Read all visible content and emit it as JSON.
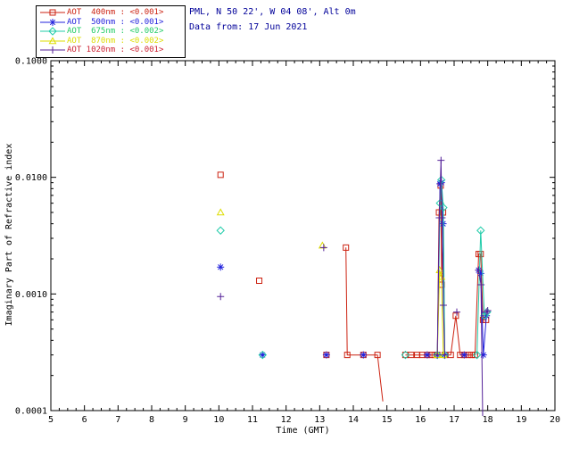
{
  "header": {
    "line1": "PML, N 50 22', W 04 08', Alt 0m",
    "line2": "Data from: 17 Jun 2021"
  },
  "chart_data": {
    "type": "line",
    "xlabel": "Time (GMT)",
    "ylabel": "Imaginary Part of Refractive index",
    "xlim": [
      5,
      20
    ],
    "ylim": [
      0.0001,
      0.1
    ],
    "y_scale": "log",
    "grid": false,
    "legend_position": "top-left",
    "x_ticks": [
      5,
      6,
      7,
      8,
      9,
      10,
      11,
      12,
      13,
      14,
      15,
      16,
      17,
      18,
      19,
      20
    ],
    "y_ticks": [
      {
        "value": 0.0001,
        "label": "0.0001"
      },
      {
        "value": 0.001,
        "label": "0.0010"
      },
      {
        "value": 0.01,
        "label": "0.0100"
      },
      {
        "value": 0.1,
        "label": "0.1000"
      }
    ],
    "series": [
      {
        "name": "AOT 400nm",
        "legend_label": "AOT  400nm : <0.001>",
        "mean_value": "<0.001>",
        "color": "#cc2211",
        "legend_text_color": "#cc2211",
        "marker": "square",
        "segments": [
          [
            [
              10.05,
              0.0105
            ]
          ],
          [
            [
              11.2,
              0.0013
            ]
          ],
          [
            [
              13.2,
              0.0003
            ]
          ],
          [
            [
              13.78,
              0.0025
            ],
            [
              13.82,
              0.0003
            ],
            [
              14.3,
              0.0003
            ],
            [
              14.72,
              0.0003
            ],
            [
              14.88,
              0.00012
            ]
          ],
          [
            [
              15.55,
              0.0003
            ],
            [
              15.72,
              0.0003
            ],
            [
              15.9,
              0.0003
            ],
            [
              16.05,
              0.0003
            ],
            [
              16.2,
              0.0003
            ],
            [
              16.32,
              0.0003
            ],
            [
              16.42,
              0.0003
            ],
            [
              16.5,
              0.0003
            ],
            [
              16.55,
              0.005
            ],
            [
              16.6,
              0.0085
            ],
            [
              16.63,
              0.0012
            ],
            [
              16.67,
              0.005
            ],
            [
              16.72,
              0.0003
            ],
            [
              16.9,
              0.0003
            ],
            [
              17.05,
              0.00065
            ],
            [
              17.18,
              0.0003
            ],
            [
              17.3,
              0.0003
            ],
            [
              17.42,
              0.0003
            ],
            [
              17.52,
              0.0003
            ],
            [
              17.62,
              0.0003
            ],
            [
              17.73,
              0.0022
            ],
            [
              17.79,
              0.0022
            ],
            [
              17.86,
              0.0006
            ],
            [
              17.95,
              0.0006
            ]
          ]
        ]
      },
      {
        "name": "AOT 500nm",
        "legend_label": "AOT  500nm : <0.001>",
        "mean_value": "<0.001>",
        "color": "#2222dd",
        "legend_text_color": "#2222dd",
        "marker": "asterisk",
        "segments": [
          [
            [
              10.05,
              0.0017
            ]
          ],
          [
            [
              11.3,
              0.0003
            ]
          ],
          [
            [
              13.2,
              0.0003
            ]
          ],
          [
            [
              14.3,
              0.0003
            ]
          ],
          [
            [
              16.2,
              0.0003
            ]
          ],
          [
            [
              16.5,
              0.0003
            ],
            [
              16.58,
              0.0088
            ],
            [
              16.62,
              0.009
            ],
            [
              16.67,
              0.004
            ],
            [
              16.72,
              0.0003
            ]
          ],
          [
            [
              17.3,
              0.0003
            ]
          ],
          [
            [
              17.73,
              0.0016
            ],
            [
              17.79,
              0.0015
            ],
            [
              17.87,
              0.0003
            ],
            [
              17.96,
              0.00065
            ]
          ]
        ]
      },
      {
        "name": "AOT 675nm",
        "legend_label": "AOT  675nm : <0.002>",
        "mean_value": "<0.002>",
        "color": "#22ccaa",
        "legend_text_color": "#22cc66",
        "marker": "diamond",
        "segments": [
          [
            [
              10.05,
              0.0035
            ]
          ],
          [
            [
              11.3,
              0.0003
            ]
          ],
          [
            [
              15.55,
              0.0003
            ]
          ],
          [
            [
              16.5,
              0.0003
            ],
            [
              16.58,
              0.006
            ],
            [
              16.62,
              0.0095
            ],
            [
              16.68,
              0.0055
            ],
            [
              16.72,
              0.0003
            ]
          ],
          [
            [
              17.68,
              0.0003
            ],
            [
              17.79,
              0.0035
            ],
            [
              17.9,
              0.00065
            ],
            [
              17.98,
              0.0007
            ]
          ]
        ]
      },
      {
        "name": "AOT 870nm",
        "legend_label": "AOT  870nm : <0.002>",
        "mean_value": "<0.002>",
        "color": "#dddd00",
        "legend_text_color": "#dddd00",
        "marker": "triangle",
        "segments": [
          [
            [
              10.05,
              0.005
            ]
          ],
          [
            [
              13.08,
              0.0026
            ]
          ],
          [
            [
              16.5,
              0.0003
            ],
            [
              16.57,
              0.0016
            ],
            [
              16.62,
              0.0014
            ],
            [
              16.68,
              0.0003
            ]
          ]
        ]
      },
      {
        "name": "AOT 1020nm",
        "legend_label": "AOT 1020nm : <0.001>",
        "mean_value": "<0.001>",
        "color": "#552299",
        "legend_text_color": "#cc2233",
        "marker": "plus",
        "segments": [
          [
            [
              10.05,
              0.00095
            ]
          ],
          [
            [
              13.12,
              0.0025
            ]
          ],
          [
            [
              16.5,
              0.0003
            ],
            [
              16.56,
              0.0045
            ],
            [
              16.61,
              0.014
            ],
            [
              16.64,
              0.0045
            ],
            [
              16.68,
              0.0008
            ],
            [
              16.72,
              0.0003
            ]
          ],
          [
            [
              17.08,
              0.0007
            ]
          ],
          [
            [
              17.73,
              0.0016
            ],
            [
              17.8,
              0.0012
            ],
            [
              17.85,
              9e-05
            ]
          ],
          [
            [
              17.96,
              0.0007
            ],
            [
              18.0,
              0.00072
            ]
          ]
        ]
      }
    ]
  }
}
